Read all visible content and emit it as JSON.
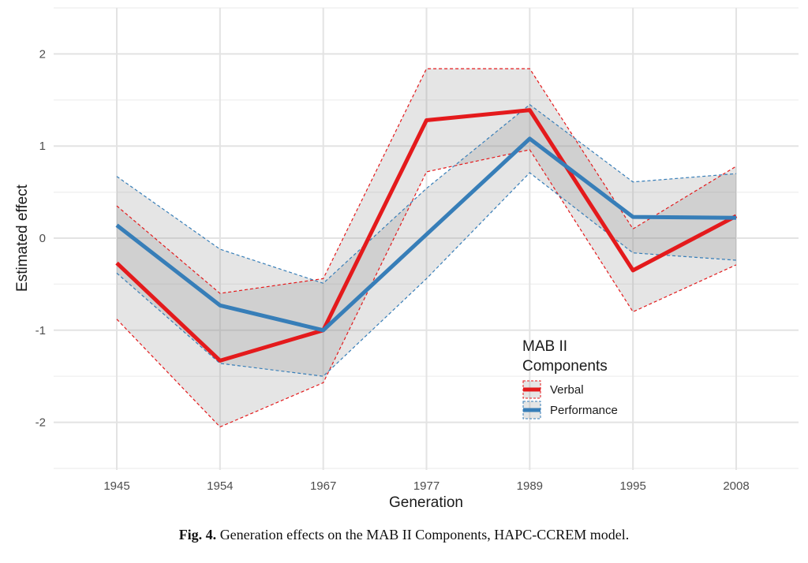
{
  "chart_data": {
    "type": "line",
    "xlabel": "Generation",
    "ylabel": "Estimated effect",
    "categories": [
      "1945",
      "1954",
      "1967",
      "1977",
      "1989",
      "1995",
      "2008"
    ],
    "ylim": [
      -2.5,
      2.5
    ],
    "yticks": [
      -2,
      -1,
      0,
      1,
      2
    ],
    "y_tick_labels": [
      "-2",
      "-1",
      "0",
      "1",
      "2"
    ],
    "grid": true,
    "legend": {
      "title_line1": "MAB II",
      "title_line2": "Components",
      "placement": "bottom-right (inside plot)"
    },
    "series": [
      {
        "name": "Verbal",
        "color": "#e41a1c",
        "values": [
          -0.27,
          -1.33,
          -1.0,
          1.28,
          1.39,
          -0.35,
          0.24
        ],
        "lower": [
          -0.88,
          -2.05,
          -1.57,
          0.72,
          0.96,
          -0.8,
          -0.29
        ],
        "upper": [
          0.35,
          -0.6,
          -0.44,
          1.84,
          1.84,
          0.1,
          0.78
        ]
      },
      {
        "name": "Performance",
        "color": "#377eb8",
        "values": [
          0.14,
          -0.73,
          -1.0,
          0.04,
          1.08,
          0.23,
          0.22
        ],
        "lower": [
          -0.38,
          -1.36,
          -1.5,
          -0.44,
          0.71,
          -0.16,
          -0.24
        ],
        "upper": [
          0.67,
          -0.12,
          -0.49,
          0.54,
          1.45,
          0.61,
          0.7
        ]
      }
    ]
  },
  "caption": {
    "label": "Fig. 4.",
    "text": " Generation effects on the MAB II Components, HAPC-CCREM model."
  }
}
